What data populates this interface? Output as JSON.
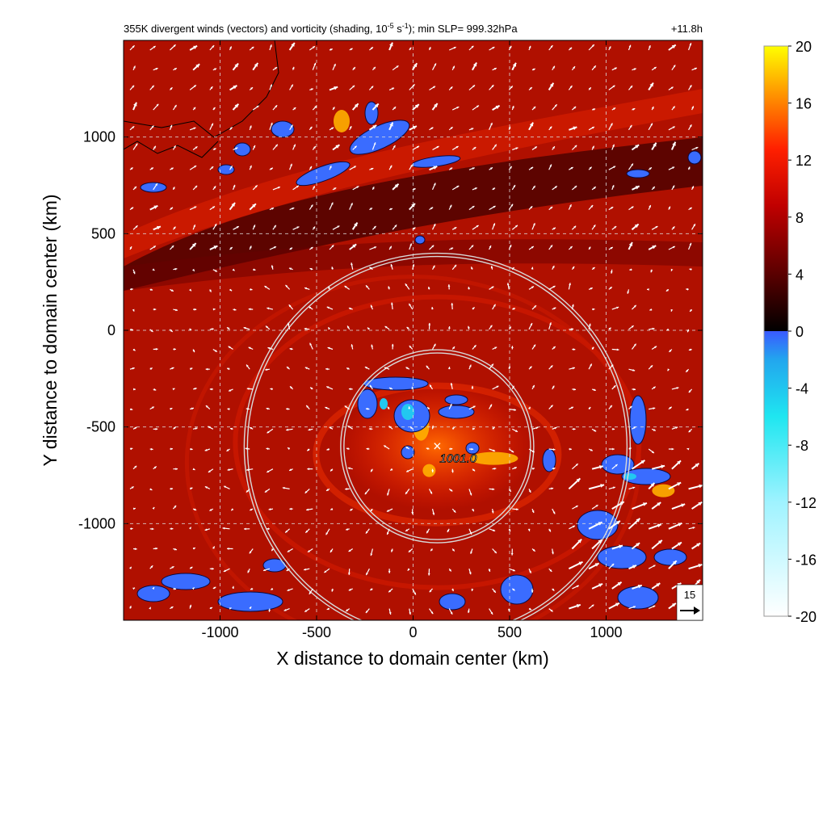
{
  "chart_data": {
    "type": "heatmap",
    "title": "355K divergent winds (vectors) and vorticity (shading, 10",
    "title_exp1": "-5",
    "title_mid": " s",
    "title_exp2": "-1",
    "title_end": "); min SLP= 999.32hPa",
    "time_label": "+11.8h",
    "xlabel": "X distance to domain center (km)",
    "ylabel": "Y distance to domain center (km)",
    "xlim": [
      -1500,
      1500
    ],
    "ylim": [
      -1500,
      1500
    ],
    "xticks": [
      -1000,
      -500,
      0,
      500,
      1000
    ],
    "yticks": [
      -1000,
      -500,
      0,
      500,
      1000
    ],
    "xtick_labels": [
      "-1000",
      "-500",
      "0",
      "500",
      "1000"
    ],
    "ytick_labels": [
      "-1000",
      "-500",
      "0",
      "500",
      "1000"
    ],
    "grid": true,
    "colorbar": {
      "range": [
        -20,
        20
      ],
      "ticks": [
        -20,
        -16,
        -12,
        -8,
        -4,
        0,
        4,
        8,
        12,
        16,
        20
      ],
      "tick_labels": [
        "-20",
        "-16",
        "-12",
        "-8",
        "-4",
        "0",
        "4",
        "8",
        "12",
        "16",
        "20"
      ],
      "placement": "right"
    },
    "center_marker": {
      "x": 125,
      "y": -600,
      "label": "1001.0"
    },
    "rings": [
      {
        "cx": 125,
        "cy": -600,
        "r_km": 500
      },
      {
        "cx": 125,
        "cy": -600,
        "r_km": 1000
      }
    ],
    "reference_vector": {
      "label": "15"
    },
    "colors": {
      "background_vorticity": "#b01000",
      "strong_vorticity": "#ff3a00",
      "max_vorticity": "#ffe000",
      "negative_vorticity": "#3a78ff",
      "zero_vorticity": "#000000",
      "ring": "#d9d9d9",
      "vector": "#ffffff"
    }
  }
}
